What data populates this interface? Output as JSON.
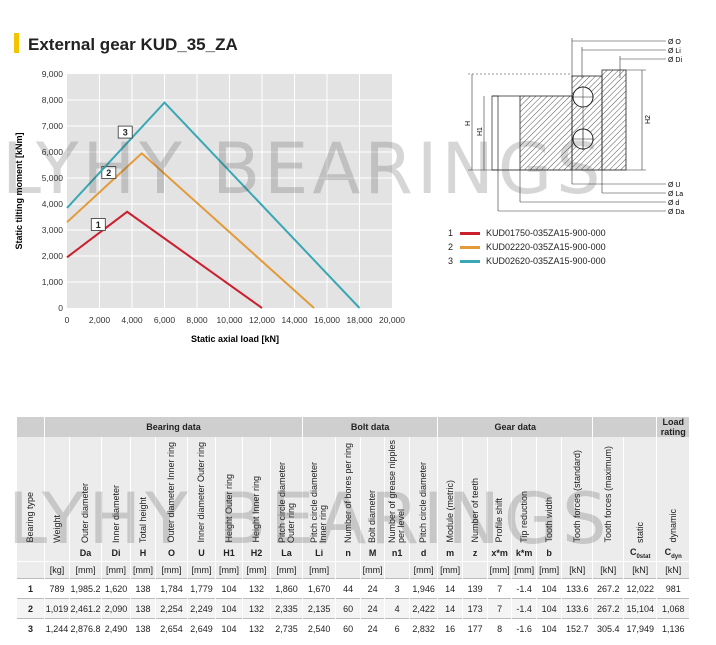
{
  "title": "External gear KUD_35_ZA",
  "watermark": "LYHY BEARINGS",
  "chart_data": {
    "type": "line",
    "xlabel": "Static axial load [kN]",
    "ylabel": "Static tilting moment [kNm]",
    "xlim": [
      0,
      20000
    ],
    "ylim": [
      0,
      9000
    ],
    "x_ticks": [
      "0",
      "2,000",
      "4,000",
      "6,000",
      "8,000",
      "10,000",
      "12,000",
      "14,000",
      "16,000",
      "18,000",
      "20,000"
    ],
    "y_ticks": [
      "0",
      "1,000",
      "2,000",
      "3,000",
      "4,000",
      "5,000",
      "6,000",
      "7,000",
      "8,000",
      "9,000"
    ],
    "grid": true,
    "series": [
      {
        "name": "KUD01750-035ZA15-900-000",
        "label": "1",
        "color": "#cc1f2e",
        "points": [
          [
            0,
            1950
          ],
          [
            3700,
            3700
          ],
          [
            12000,
            0
          ]
        ]
      },
      {
        "name": "KUD02220-035ZA15-900-000",
        "label": "2",
        "color": "#e39a3a",
        "points": [
          [
            0,
            3300
          ],
          [
            4600,
            5950
          ],
          [
            15200,
            0
          ]
        ]
      },
      {
        "name": "KUD02620-035ZA15-900-000",
        "label": "3",
        "color": "#3aa7b5",
        "points": [
          [
            0,
            3850
          ],
          [
            6000,
            7900
          ],
          [
            18000,
            0
          ]
        ]
      }
    ]
  },
  "drawing_labels": {
    "top": [
      "Ø O",
      "Ø Li",
      "Ø Di"
    ],
    "bottom": [
      "Ø U",
      "Ø La",
      "Ø d",
      "Ø Da"
    ],
    "side_left": [
      "H",
      "H1"
    ],
    "side_right": [
      "H2"
    ]
  },
  "table": {
    "groups": [
      {
        "label": "",
        "span": 1
      },
      {
        "label": "Bearing data",
        "span": 9
      },
      {
        "label": "Bolt data",
        "span": 5
      },
      {
        "label": "Gear data",
        "span": 6
      },
      {
        "label": "",
        "span": 2
      },
      {
        "label": "Load rating",
        "span": 2
      }
    ],
    "headers": [
      "Bearing type",
      "Weight",
      "Outer diameter",
      "Inner diameter",
      "Total height",
      "Outer diameter Inner ring",
      "Inner diameter Outer ring",
      "Height Outer ring",
      "Height Inner ring",
      "Pitch circle diameter Outer ring",
      "Pitch circle diameter Inner ring",
      "Number of bores per ring",
      "Bolt diameter",
      "Number of grease nipples per level",
      "Pitch circle diameter",
      "Module (metric)",
      "Number of teeth",
      "Profile shift",
      "Tip reduction",
      "Tooth width",
      "Tooth forces (standard)",
      "Tooth forces (maximum)",
      "static",
      "dynamic"
    ],
    "symbols": [
      "",
      "",
      "Da",
      "Di",
      "H",
      "O",
      "U",
      "H1",
      "H2",
      "La",
      "Li",
      "n",
      "M",
      "n1",
      "d",
      "m",
      "z",
      "x*m",
      "k*m",
      "b",
      "",
      "",
      "C0stat",
      "Cdyn"
    ],
    "units": [
      "",
      "[kg]",
      "[mm]",
      "[mm]",
      "[mm]",
      "[mm]",
      "[mm]",
      "[mm]",
      "[mm]",
      "[mm]",
      "[mm]",
      "",
      "[mm]",
      "",
      "[mm]",
      "[mm]",
      "",
      "[mm]",
      "[mm]",
      "[mm]",
      "[kN]",
      "[kN]",
      "[kN]",
      "[kN]"
    ],
    "rows": [
      [
        "1",
        "789",
        "1,985.2",
        "1,620",
        "138",
        "1,784",
        "1,779",
        "104",
        "132",
        "1,860",
        "1,670",
        "44",
        "24",
        "3",
        "1,946",
        "14",
        "139",
        "7",
        "-1.4",
        "104",
        "133.6",
        "267.2",
        "12,022",
        "981"
      ],
      [
        "2",
        "1,019",
        "2,461.2",
        "2,090",
        "138",
        "2,254",
        "2,249",
        "104",
        "132",
        "2,335",
        "2,135",
        "60",
        "24",
        "4",
        "2,422",
        "14",
        "173",
        "7",
        "-1.4",
        "104",
        "133.6",
        "267.2",
        "15,104",
        "1,068"
      ],
      [
        "3",
        "1,244",
        "2,876.8",
        "2,490",
        "138",
        "2,654",
        "2,649",
        "104",
        "132",
        "2,735",
        "2,540",
        "60",
        "24",
        "6",
        "2,832",
        "16",
        "177",
        "8",
        "-1.6",
        "104",
        "152.7",
        "305.4",
        "17,949",
        "1,136"
      ]
    ]
  }
}
